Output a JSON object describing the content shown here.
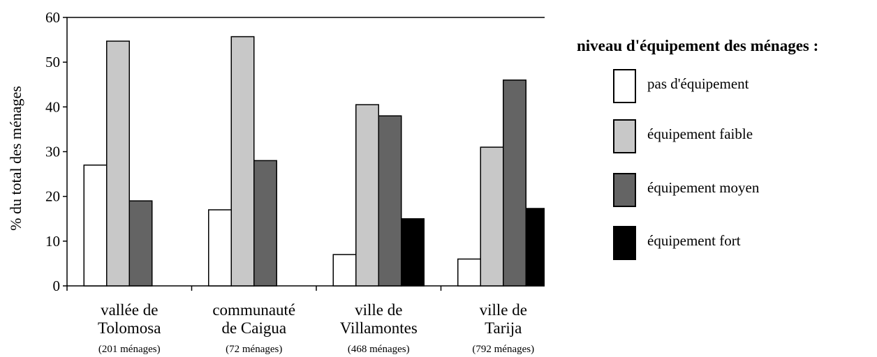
{
  "chart_data": {
    "type": "bar",
    "ylabel": "% du total des ménages",
    "ylim": [
      0,
      60
    ],
    "yticks": [
      0,
      10,
      20,
      30,
      40,
      50,
      60
    ],
    "grid": false,
    "legend_position": "right",
    "legend_title": "niveau d'équipement des ménages :",
    "categories": [
      {
        "line1": "vallée de",
        "line2": "Tolomosa",
        "note": "(201 ménages)"
      },
      {
        "line1": "communauté",
        "line2": "de Caigua",
        "note": "(72 ménages)"
      },
      {
        "line1": "ville de",
        "line2": "Villamontes",
        "note": "(468 ménages)"
      },
      {
        "line1": "ville de",
        "line2": "Tarija",
        "note": "(792 ménages)"
      }
    ],
    "series": [
      {
        "name": "pas d'équipement",
        "color": "#ffffff",
        "values": [
          27,
          17,
          7,
          6
        ]
      },
      {
        "name": "équipement faible",
        "color": "#c8c8c8",
        "values": [
          54.7,
          55.7,
          40.5,
          31
        ]
      },
      {
        "name": "équipement moyen",
        "color": "#646464",
        "values": [
          19,
          28,
          38,
          46
        ]
      },
      {
        "name": "équipement fort",
        "color": "#000000",
        "values": [
          0,
          0,
          15,
          17.3
        ]
      }
    ]
  }
}
